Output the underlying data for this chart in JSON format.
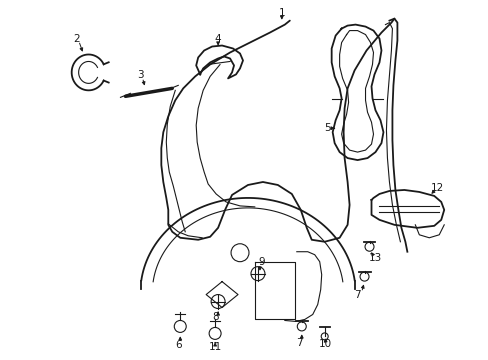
{
  "bg_color": "#ffffff",
  "line_color": "#1a1a1a",
  "fig_width": 4.89,
  "fig_height": 3.6,
  "dpi": 100,
  "label_fs": 7.5
}
